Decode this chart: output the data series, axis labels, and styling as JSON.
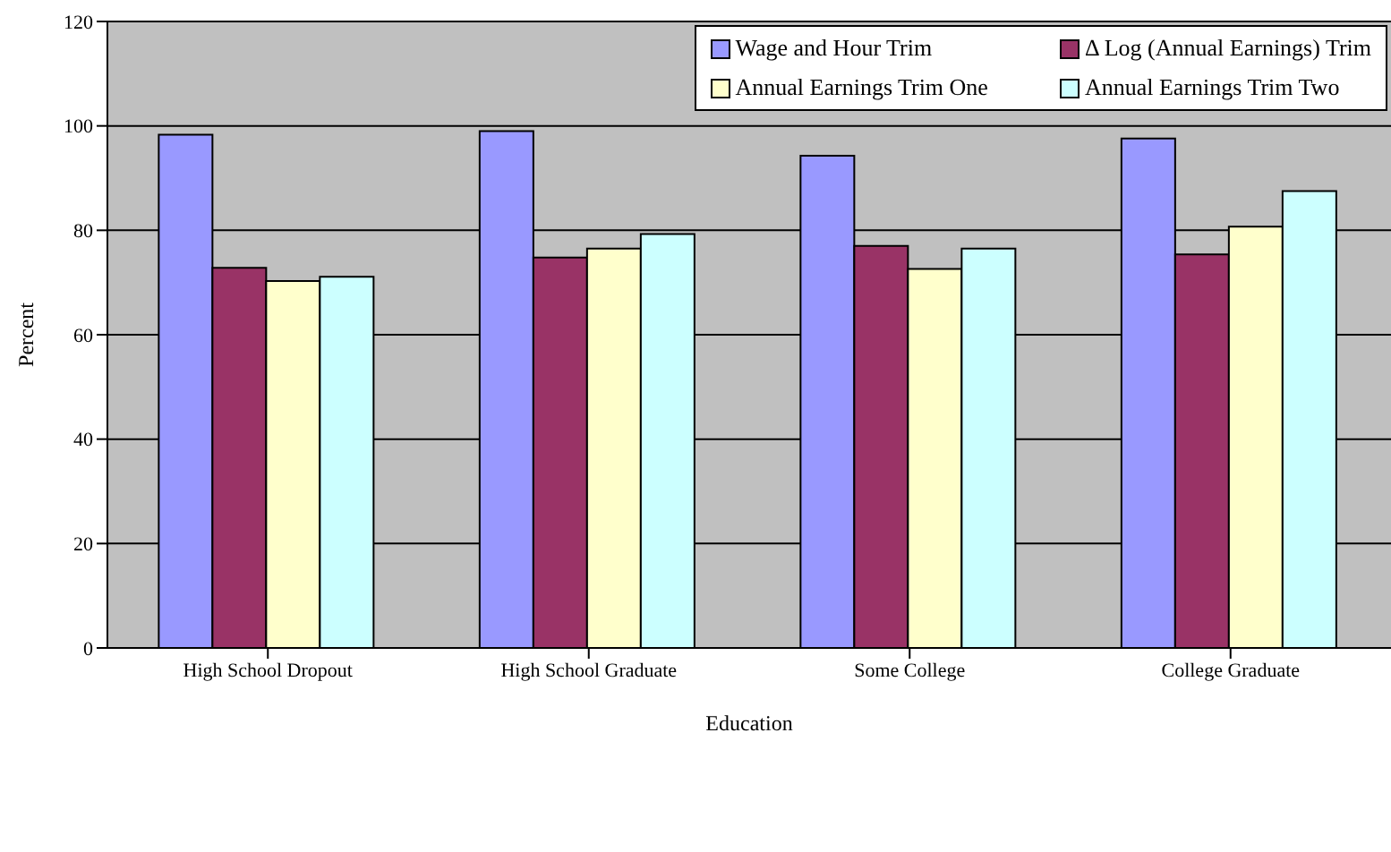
{
  "chart_data": {
    "type": "bar",
    "xlabel": "Education",
    "ylabel": "Percent",
    "categories": [
      "High School Dropout",
      "High School Graduate",
      "Some College",
      "College Graduate"
    ],
    "series": [
      {
        "name": "Wage and Hour Trim",
        "color": "#9999ff",
        "values": [
          98.3,
          99.0,
          94.3,
          97.6
        ]
      },
      {
        "name": "Δ Log (Annual Earnings) Trim",
        "color": "#993366",
        "values": [
          72.8,
          74.8,
          77.0,
          75.4
        ]
      },
      {
        "name": "Annual Earnings Trim One",
        "color": "#ffffcc",
        "values": [
          70.3,
          76.5,
          72.6,
          80.7
        ]
      },
      {
        "name": "Annual Earnings Trim Two",
        "color": "#ccffff",
        "values": [
          71.1,
          79.3,
          76.5,
          87.5
        ]
      }
    ],
    "ylim": [
      0,
      120
    ],
    "yticks": [
      0,
      20,
      40,
      60,
      80,
      100,
      120
    ],
    "grid": "y",
    "legend": "top right"
  }
}
